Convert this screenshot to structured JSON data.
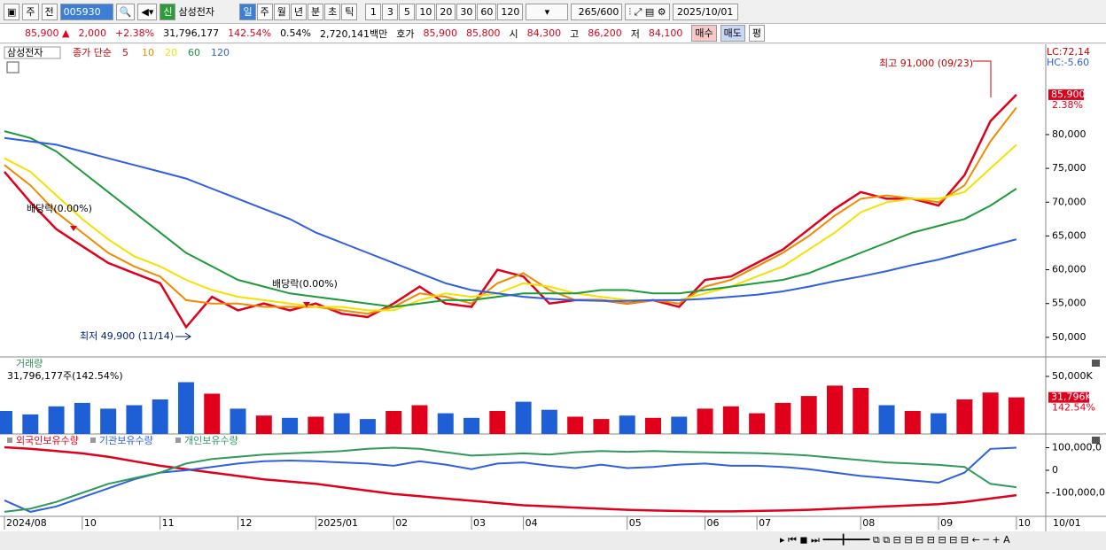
{
  "toolbar": {
    "market": "주",
    "kind": "전",
    "code": "005930",
    "badge": "신",
    "name": "삼성전자",
    "periods": [
      "일",
      "주",
      "월",
      "년",
      "분",
      "초",
      "틱"
    ],
    "numbers": [
      "1",
      "3",
      "5",
      "10",
      "20",
      "30",
      "60",
      "120"
    ],
    "count": "265/600",
    "date": "2025/10/01"
  },
  "quote": {
    "price": "85,900 ▲",
    "change": "2,000",
    "pct": "+2.38%",
    "volume": "31,796,177",
    "vol_ratio": "142.54%",
    "turnover": "0.54%",
    "amount": "2,720,141백만",
    "bid_label": "호가",
    "ask": "85,900",
    "bid": "85,800",
    "open_label": "시",
    "open": "84,300",
    "high_label": "고",
    "high": "86,200",
    "low_label": "저",
    "low": "84,100",
    "buy": "매수",
    "sell": "매도",
    "avg": "평"
  },
  "chart_data": [
    {
      "type": "line",
      "title": "삼성전자",
      "legend_prefix": "종가 단순",
      "categories": [
        "2024/08",
        null,
        null,
        "10",
        null,
        null,
        "11",
        null,
        null,
        "12",
        null,
        null,
        "2025/01",
        null,
        null,
        "02",
        null,
        null,
        "03",
        null,
        "04",
        null,
        null,
        null,
        "05",
        null,
        null,
        "06",
        null,
        "07",
        null,
        null,
        null,
        "08",
        null,
        null,
        "09",
        null,
        null,
        "10"
      ],
      "series": [
        {
          "name": "5",
          "color": "#e0001b",
          "values": [
            74500,
            70000,
            66000,
            63500,
            61000,
            59500,
            58000,
            51500,
            56000,
            54000,
            55000,
            54000,
            55000,
            53500,
            53000,
            55000,
            57500,
            55000,
            54500,
            60000,
            59000,
            55000,
            55500,
            55500,
            55000,
            55500,
            54500,
            58500,
            59000,
            61000,
            63000,
            66000,
            69000,
            71500,
            70500,
            70500,
            69500,
            74000,
            82000,
            85900
          ]
        },
        {
          "name": "10",
          "color": "#f08a00",
          "values": [
            75500,
            72500,
            68500,
            65500,
            62500,
            60500,
            59000,
            55500,
            55000,
            55000,
            54500,
            54500,
            54500,
            54000,
            53500,
            54500,
            56500,
            56000,
            55000,
            58000,
            59500,
            57000,
            55500,
            55500,
            55000,
            55500,
            55000,
            57500,
            58500,
            60500,
            62500,
            65000,
            68000,
            70500,
            71000,
            70500,
            70000,
            72500,
            79000,
            84000
          ]
        },
        {
          "name": "20",
          "color": "#f5e000",
          "values": [
            76500,
            74500,
            71000,
            67500,
            64500,
            62000,
            60500,
            58500,
            57000,
            56000,
            55500,
            55000,
            54500,
            54500,
            54000,
            54000,
            55500,
            56500,
            56000,
            56500,
            58000,
            57500,
            56500,
            56000,
            55500,
            55500,
            55500,
            56500,
            57500,
            59000,
            60500,
            63000,
            65500,
            68500,
            70000,
            70500,
            70500,
            71500,
            75000,
            78500
          ]
        },
        {
          "name": "60",
          "color": "#1e9a3a",
          "values": [
            80500,
            79500,
            77500,
            74500,
            71500,
            68500,
            65500,
            62500,
            60500,
            58500,
            57500,
            56500,
            56000,
            55500,
            55000,
            54500,
            55000,
            55500,
            55500,
            56000,
            56500,
            56500,
            56500,
            57000,
            57000,
            56500,
            56500,
            57000,
            57500,
            58000,
            58500,
            59500,
            61000,
            62500,
            64000,
            65500,
            66500,
            67500,
            69500,
            72000
          ]
        },
        {
          "name": "120",
          "color": "#2f5fe0",
          "values": [
            79500,
            79000,
            78500,
            77500,
            76500,
            75500,
            74500,
            73500,
            72000,
            70500,
            69000,
            67500,
            65500,
            64000,
            62500,
            61000,
            59500,
            58000,
            57000,
            56500,
            56000,
            55700,
            55500,
            55400,
            55400,
            55500,
            55500,
            55700,
            56000,
            56300,
            56800,
            57500,
            58300,
            59000,
            59800,
            60700,
            61500,
            62500,
            63500,
            64500
          ]
        }
      ],
      "ylim": [
        47100,
        93100
      ],
      "yticks": [
        {
          "value": 50000,
          "label": "50,000"
        },
        {
          "value": 55000,
          "label": "55,000"
        },
        {
          "value": 60000,
          "label": "60,000"
        },
        {
          "value": 65000,
          "label": "65,000"
        },
        {
          "value": 70000,
          "label": "70,000"
        },
        {
          "value": 75000,
          "label": "75,000"
        },
        {
          "value": 80000,
          "label": "80,000"
        }
      ],
      "annotations": {
        "lc": "LC:72,14",
        "hc": "HC:-5.60",
        "high": "최고 91,000 (09/23)",
        "low": "최저 49,900 (11/14)",
        "ex_dividend": [
          "배당락(0.00%)",
          "배당락(0.00%)"
        ]
      },
      "last_label": "85,900",
      "last_change": "2.38%",
      "end_label": "10/01"
    },
    {
      "type": "bar",
      "title": "거래량",
      "subtitle": "31,796,177주(142.54%)",
      "values": [
        20000,
        17000,
        24000,
        27000,
        22000,
        25000,
        30000,
        45000,
        35000,
        22000,
        16000,
        14000,
        15000,
        18000,
        13000,
        20000,
        25000,
        18000,
        14000,
        20000,
        28000,
        21000,
        15000,
        13000,
        16000,
        14000,
        15000,
        22000,
        24000,
        18000,
        27000,
        33000,
        42000,
        40000,
        25000,
        20000,
        18000,
        30000,
        36000,
        31796
      ],
      "colors": [
        "#1f5fd6",
        "#1f5fd6",
        "#1f5fd6",
        "#1f5fd6",
        "#1f5fd6",
        "#1f5fd6",
        "#1f5fd6",
        "#1f5fd6",
        "#e0001b",
        "#1f5fd6",
        "#e0001b",
        "#1f5fd6",
        "#e0001b",
        "#1f5fd6",
        "#1f5fd6",
        "#e0001b",
        "#e0001b",
        "#1f5fd6",
        "#1f5fd6",
        "#e0001b",
        "#1f5fd6",
        "#1f5fd6",
        "#e0001b",
        "#e0001b",
        "#1f5fd6",
        "#e0001b",
        "#1f5fd6",
        "#e0001b",
        "#e0001b",
        "#e0001b",
        "#e0001b",
        "#e0001b",
        "#e0001b",
        "#e0001b",
        "#1f5fd6",
        "#e0001b",
        "#1f5fd6",
        "#e0001b",
        "#e0001b",
        "#e0001b"
      ],
      "ylim": [
        0,
        65400
      ],
      "yticks": [
        {
          "value": 50000,
          "label": "50,000K"
        }
      ],
      "last_label": "31,796K",
      "last_ratio": "142.54%"
    },
    {
      "type": "line",
      "series": [
        {
          "name": "외국인보유수량",
          "color": "#e0001b",
          "values": [
            102000000,
            95000000,
            85000000,
            75000000,
            60000000,
            40000000,
            20000000,
            5000000,
            -10000000,
            -25000000,
            -40000000,
            -50000000,
            -60000000,
            -75000000,
            -90000000,
            -105000000,
            -115000000,
            -125000000,
            -135000000,
            -145000000,
            -155000000,
            -160000000,
            -165000000,
            -170000000,
            -175000000,
            -178000000,
            -180000000,
            -182000000,
            -182000000,
            -180000000,
            -178000000,
            -175000000,
            -170000000,
            -165000000,
            -160000000,
            -155000000,
            -150000000,
            -140000000,
            -125000000,
            -110000000
          ]
        },
        {
          "name": "기관보유수량",
          "color": "#2f5fe0",
          "values": [
            -133000000,
            -184000000,
            -160000000,
            -120000000,
            -80000000,
            -40000000,
            -10000000,
            0,
            15000000,
            30000000,
            40000000,
            43000000,
            40000000,
            35000000,
            30000000,
            20000000,
            40000000,
            25000000,
            5000000,
            30000000,
            35000000,
            20000000,
            10000000,
            25000000,
            10000000,
            15000000,
            25000000,
            30000000,
            20000000,
            20000000,
            15000000,
            5000000,
            -10000000,
            -25000000,
            -35000000,
            -45000000,
            -55000000,
            -10000000,
            95000000,
            100000000
          ]
        },
        {
          "name": "개인보유수량",
          "color": "#2e9a5a",
          "values": [
            -184000000,
            -170000000,
            -140000000,
            -100000000,
            -60000000,
            -35000000,
            -10000000,
            30000000,
            50000000,
            60000000,
            70000000,
            75000000,
            80000000,
            85000000,
            95000000,
            100000000,
            95000000,
            80000000,
            65000000,
            70000000,
            75000000,
            70000000,
            80000000,
            85000000,
            82000000,
            85000000,
            82000000,
            80000000,
            78000000,
            76000000,
            72000000,
            65000000,
            55000000,
            45000000,
            35000000,
            30000000,
            24000000,
            15000000,
            -60000000,
            -75000000
          ]
        }
      ],
      "ylim": [
        -200000000,
        153000000
      ],
      "yticks": [
        {
          "value": 100000000,
          "label": "100,000,0"
        },
        0,
        {
          "value": -100000000,
          "label": "-100,000,0"
        }
      ]
    }
  ]
}
